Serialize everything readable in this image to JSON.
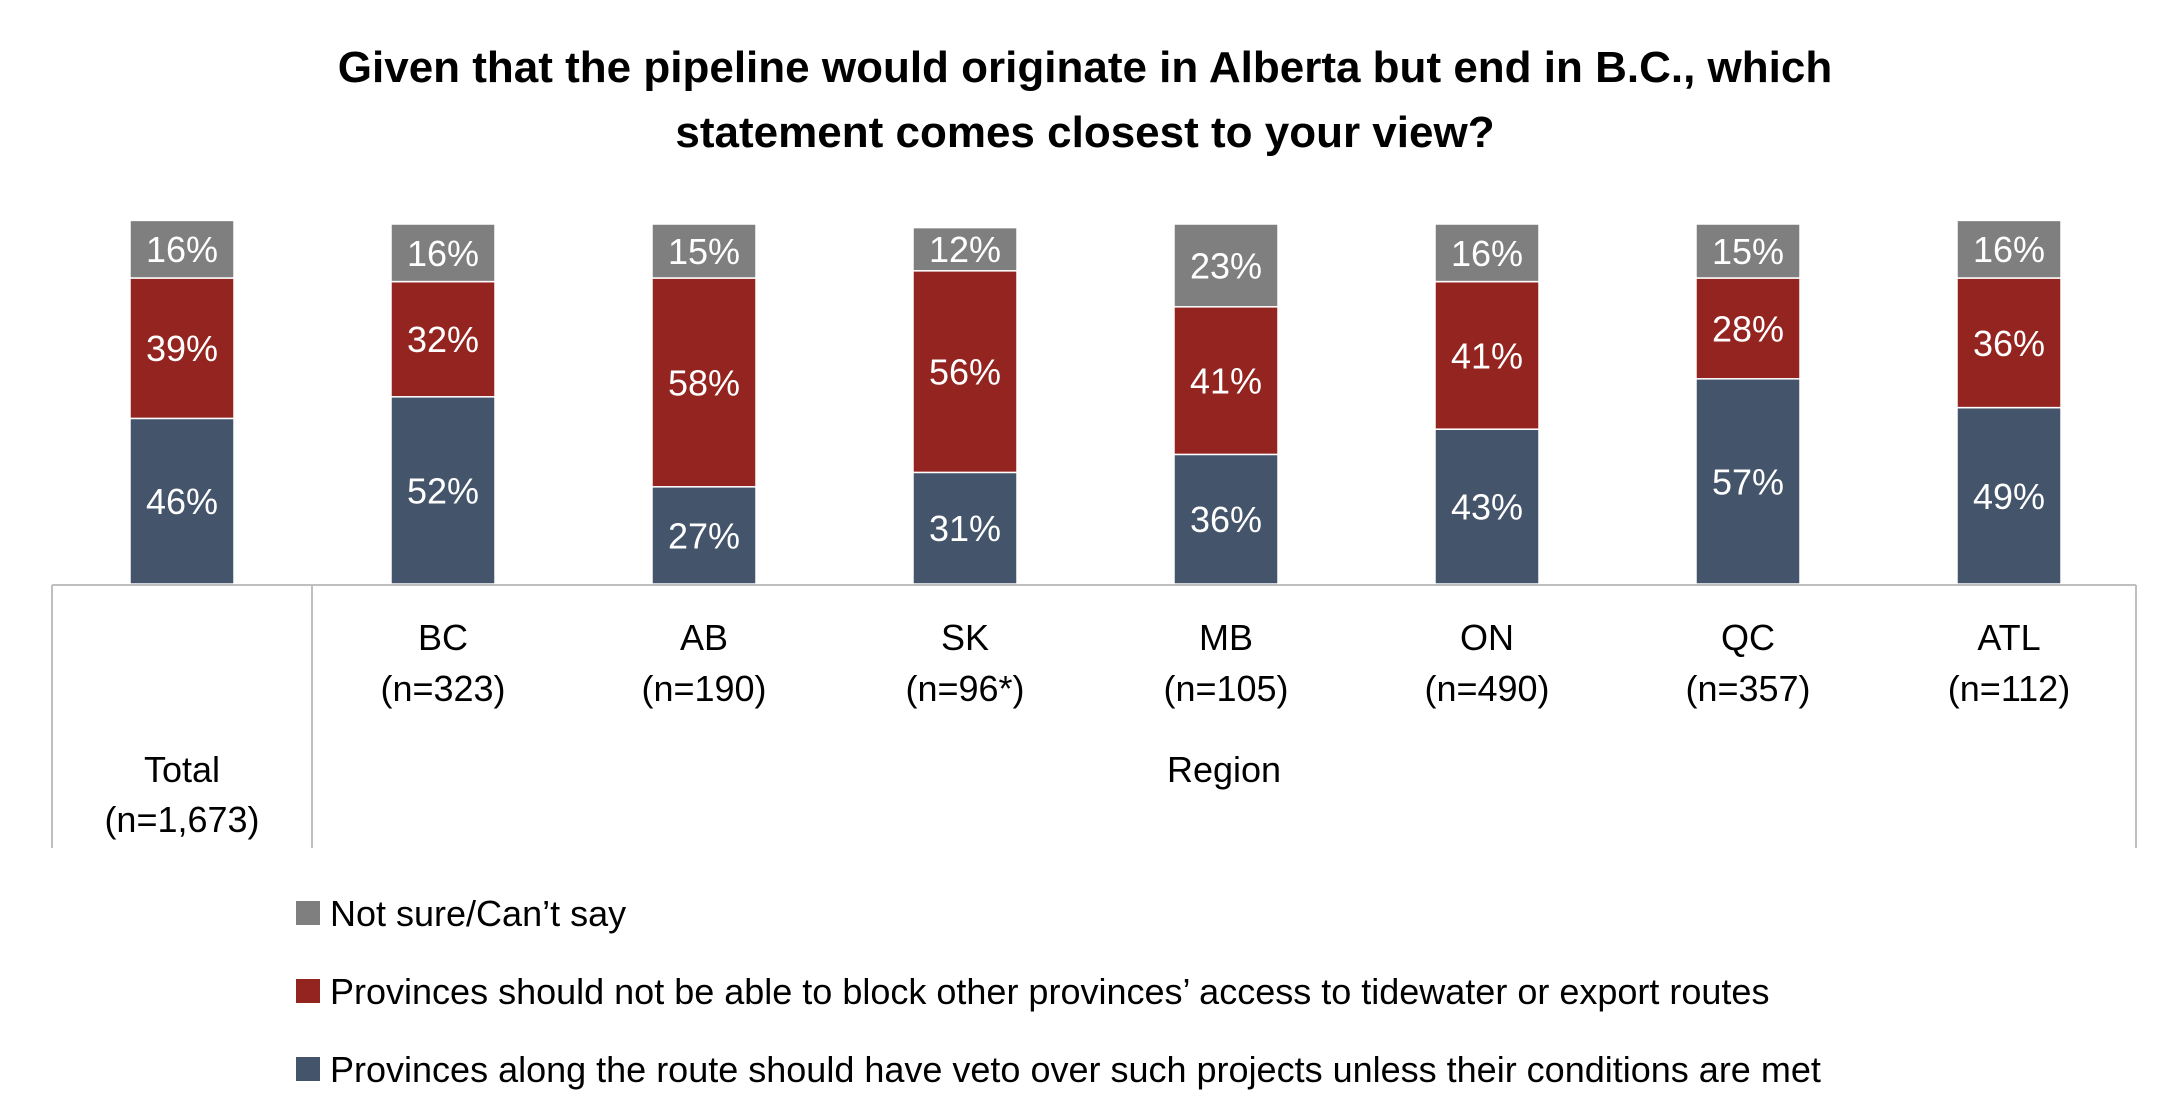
{
  "chart_data": {
    "type": "bar",
    "stacked": true,
    "title_lines": [
      "Given that the pipeline would originate in Alberta but end in B.C., which",
      "statement comes closest to your view?"
    ],
    "categories": [
      {
        "name": "Total",
        "n": "(n=1,673)"
      },
      {
        "name": "BC",
        "n": "(n=323)"
      },
      {
        "name": "AB",
        "n": "(n=190)"
      },
      {
        "name": "SK",
        "n": "(n=96*)"
      },
      {
        "name": "MB",
        "n": "(n=105)"
      },
      {
        "name": "ON",
        "n": "(n=490)"
      },
      {
        "name": "QC",
        "n": "(n=357)"
      },
      {
        "name": "ATL",
        "n": "(n=112)"
      }
    ],
    "group_label": "Region",
    "series": [
      {
        "name": "Provinces along the route should have veto over such projects unless their conditions are met",
        "color": "#44546a",
        "values": [
          46,
          52,
          27,
          31,
          36,
          43,
          57,
          49
        ]
      },
      {
        "name": "Provinces should not be able to block other provinces’ access to tidewater or export routes",
        "color": "#942420",
        "values": [
          39,
          32,
          58,
          56,
          41,
          41,
          28,
          36
        ]
      },
      {
        "name": "Not sure/Can’t say",
        "color": "#7f7f7f",
        "values": [
          16,
          16,
          15,
          12,
          23,
          16,
          15,
          16
        ]
      }
    ],
    "value_suffix": "%",
    "legend_order": [
      2,
      1,
      0
    ]
  }
}
